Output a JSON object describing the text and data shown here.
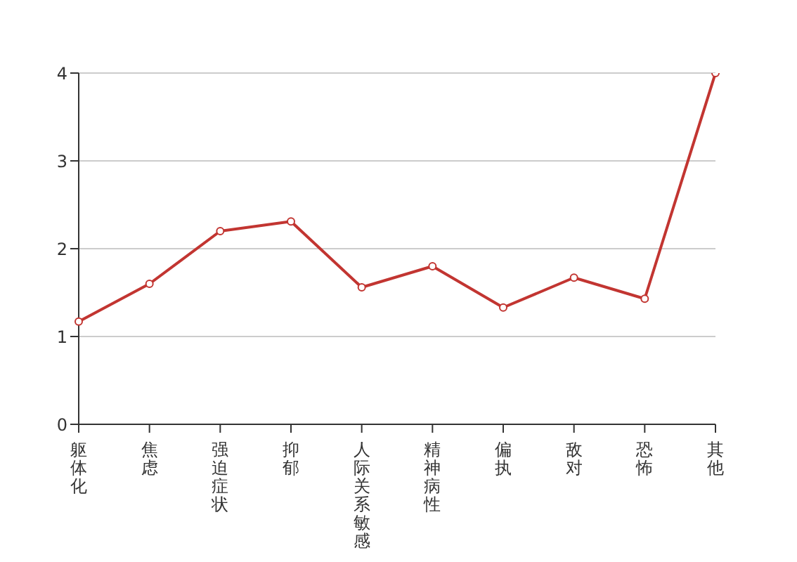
{
  "chart_data": {
    "type": "line",
    "categories": [
      "躯体化",
      "焦虑",
      "强迫症状",
      "抑郁",
      "人际关系敏感",
      "精神病性",
      "偏执",
      "敌对",
      "恐怖",
      "其他"
    ],
    "series": [
      {
        "color": "#c23531",
        "values": [
          1.17,
          1.6,
          2.2,
          2.31,
          1.56,
          1.8,
          1.33,
          1.67,
          1.43,
          4
        ]
      }
    ],
    "ylim": [
      0,
      4
    ],
    "yticks": [
      0,
      1,
      2,
      3,
      4
    ],
    "grid": "y",
    "marker": "circle",
    "line_style": "solid"
  }
}
